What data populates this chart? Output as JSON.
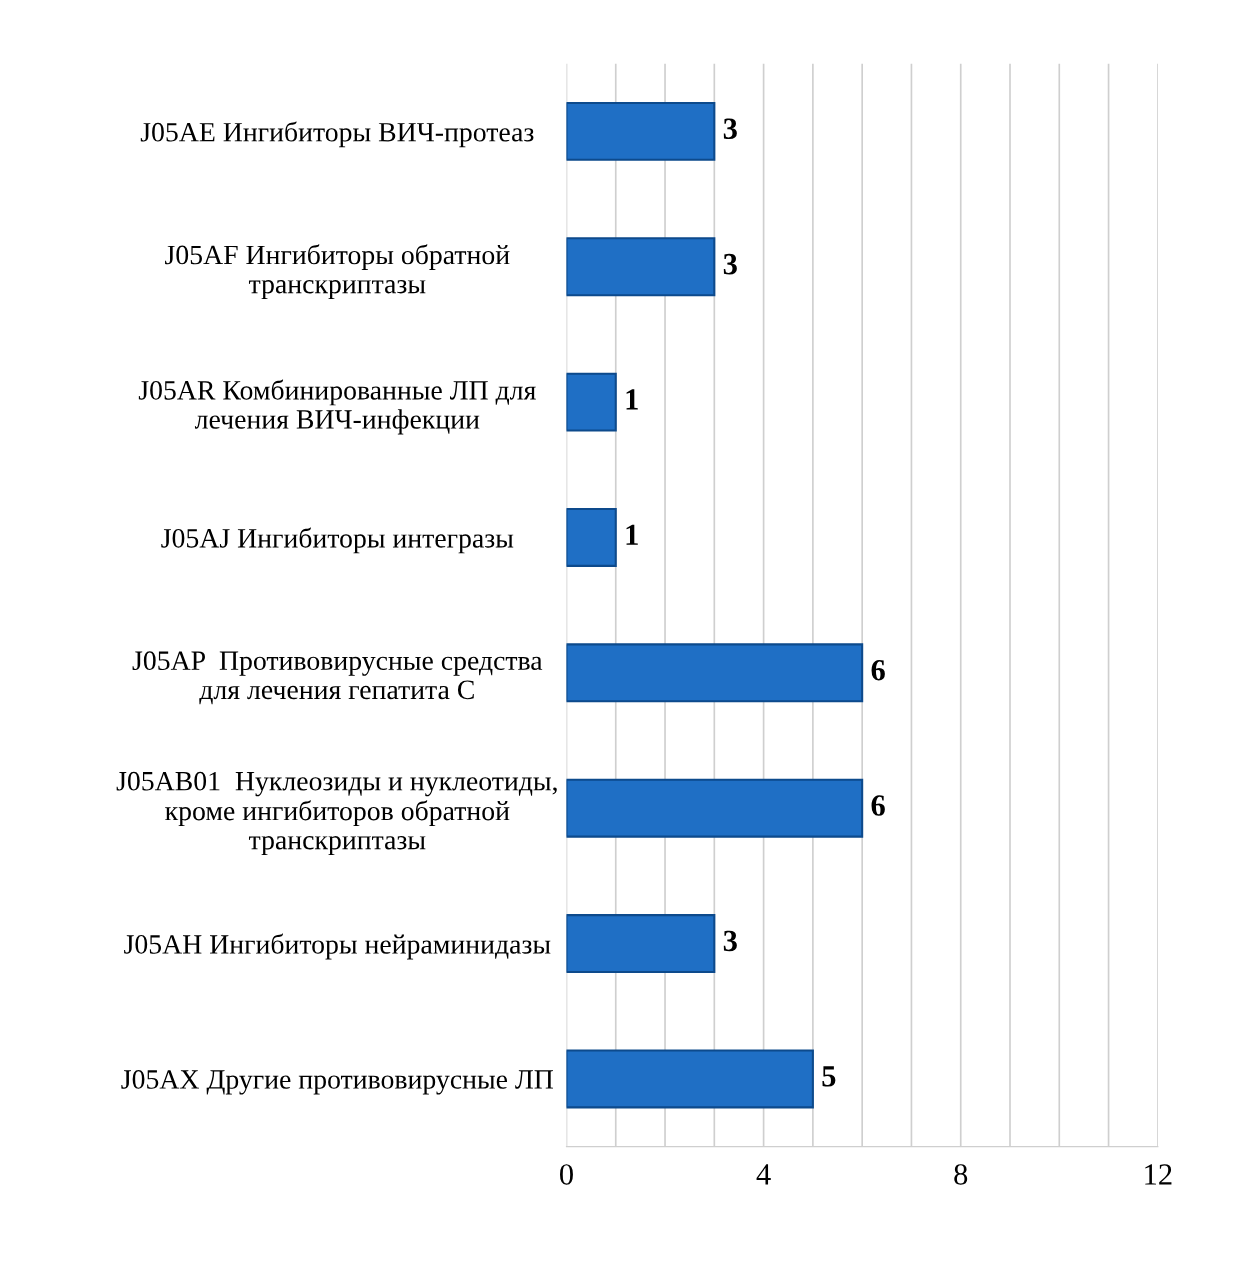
{
  "chart_data": {
    "type": "bar",
    "orientation": "horizontal",
    "categories": [
      "J05AE Ингибиторы ВИЧ-протеаз",
      "J05AF Ингибиторы обратной\nтранскриптазы",
      "J05AR Комбинированные ЛП для\nлечения ВИЧ-инфекции",
      "J05AJ Ингибиторы интегразы",
      "J05AP  Противовирусные средства\nдля лечения гепатита С",
      "J05AB01  Нуклеозиды и нуклеотиды,\nкроме ингибиторов обратной\nтранскриптазы",
      "J05AH Ингибиторы нейраминидазы",
      "J05AX Другие противовирусные ЛП"
    ],
    "values": [
      3,
      3,
      1,
      1,
      6,
      6,
      3,
      5
    ],
    "color": "#1f6fc5",
    "data_labels": true,
    "xlim": [
      0,
      12
    ],
    "xticks": [
      0,
      {
        "value": 1,
        "label": null
      },
      {
        "value": 2,
        "label": null
      },
      {
        "value": 3,
        "label": null
      },
      4,
      {
        "value": 5,
        "label": null
      },
      {
        "value": 6,
        "label": null
      },
      {
        "value": 7,
        "label": null
      },
      8,
      {
        "value": 9,
        "label": null
      },
      {
        "value": 10,
        "label": null
      },
      {
        "value": 11,
        "label": null
      },
      12
    ],
    "grid": "x"
  }
}
